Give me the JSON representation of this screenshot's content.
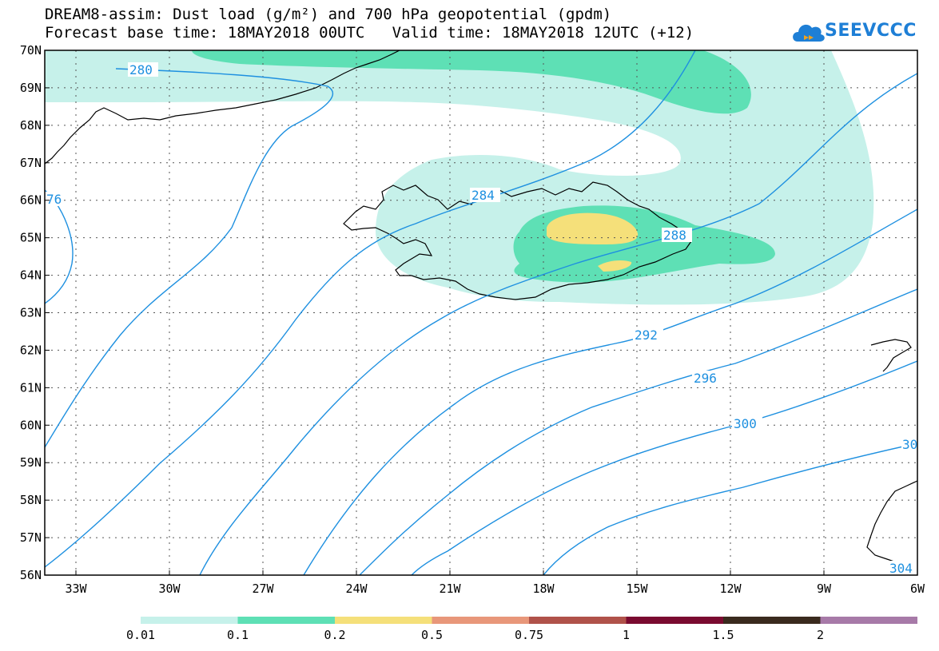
{
  "title_line1": "DREAM8-assim: Dust load (g/m²) and 700 hPa geopotential (gpdm)",
  "title_line2": "Forecast base time: 18MAY2018 00UTC   Valid time: 18MAY2018 12UTC (+12)",
  "logo_text": "SEEVCCC",
  "lat_labels": [
    "70N",
    "69N",
    "68N",
    "67N",
    "66N",
    "65N",
    "64N",
    "63N",
    "62N",
    "61N",
    "60N",
    "59N",
    "58N",
    "57N",
    "56N"
  ],
  "lon_labels": [
    "33W",
    "30W",
    "27W",
    "24W",
    "21W",
    "18W",
    "15W",
    "12W",
    "9W",
    "6W"
  ],
  "contour_labels": [
    "280",
    "284",
    "288",
    "292",
    "296",
    "300",
    "30",
    "304",
    "76"
  ],
  "legend": {
    "labels": [
      "0.01",
      "0.1",
      "0.2",
      "0.5",
      "0.75",
      "1",
      "1.5",
      "2"
    ],
    "colors": [
      "#c6f1ea",
      "#5ee0b5",
      "#f5e07a",
      "#e8977a",
      "#b0524a",
      "#7a0a30",
      "#3a2a1e",
      "#a77aa8"
    ]
  },
  "colors": {
    "contour": "#1e90e0",
    "grid": "#555555",
    "coast": "#000000"
  }
}
